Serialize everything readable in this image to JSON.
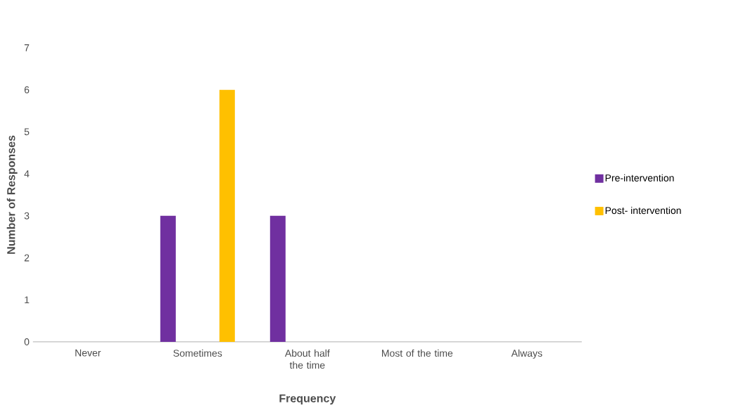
{
  "chart_data": {
    "type": "bar",
    "xlabel": "Frequency",
    "ylabel": "Number of Responses",
    "categories": [
      "Never",
      "Sometimes",
      "About half the time",
      "Most of the time",
      "Always"
    ],
    "series": [
      {
        "name": "Pre-intervention",
        "color": "#7030a0",
        "values": [
          0,
          3,
          3,
          0,
          0
        ]
      },
      {
        "name": "Post- intervention",
        "color": "#ffc000",
        "values": [
          0,
          6,
          0,
          0,
          0
        ]
      }
    ],
    "ylim": [
      0,
      7
    ],
    "yticks": [
      0,
      1,
      2,
      3,
      4,
      5,
      6,
      7
    ],
    "legend": "right"
  }
}
